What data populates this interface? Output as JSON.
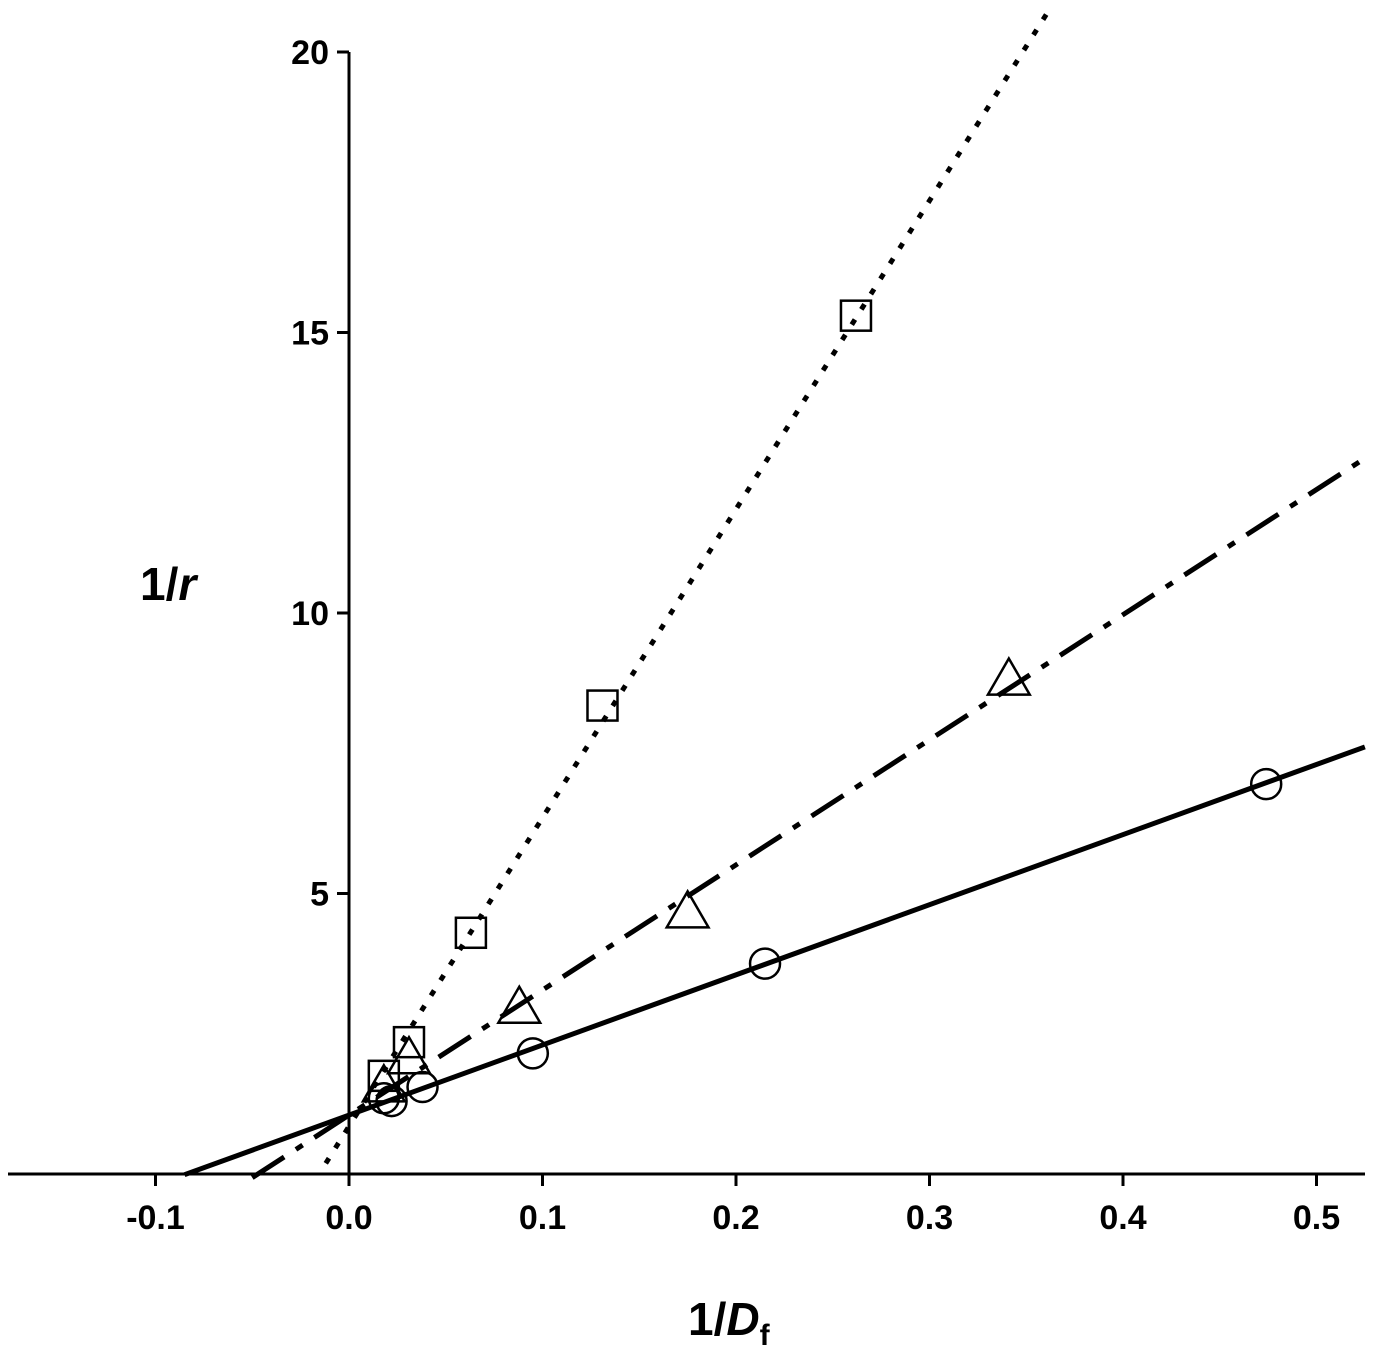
{
  "chart_data": {
    "type": "scatter",
    "title": "",
    "xlabel": {
      "prefix": "1/",
      "italic": "D",
      "sub": "f"
    },
    "ylabel": {
      "prefix": "1/",
      "italic": "r"
    },
    "xlim": [
      -0.177,
      0.525
    ],
    "ylim": [
      0,
      20
    ],
    "x_ticks": [
      -0.1,
      0.0,
      0.1,
      0.2,
      0.3,
      0.4,
      0.5
    ],
    "x_tick_labels": [
      "-0.1",
      "0.0",
      "0.1",
      "0.2",
      "0.3",
      "0.4",
      "0.5"
    ],
    "y_ticks": [
      5,
      10,
      15,
      20
    ],
    "y_tick_labels": [
      "5",
      "10",
      "15",
      "20"
    ],
    "grid": false,
    "legend": "none",
    "series": [
      {
        "marker": "square",
        "line_style": "dotted",
        "fit": {
          "slope": 55.0,
          "intercept": 0.85,
          "x_range": [
            -0.012,
            0.361
          ]
        },
        "x": [
          0.018,
          0.031,
          0.063,
          0.131,
          0.262
        ],
        "y": [
          1.75,
          2.35,
          4.3,
          8.35,
          15.3
        ]
      },
      {
        "marker": "triangle",
        "line_style": "dash-dot",
        "fit": {
          "slope": 22.3,
          "intercept": 1.05,
          "x_range": [
            -0.05,
            0.525
          ]
        },
        "x": [
          0.018,
          0.031,
          0.088,
          0.175,
          0.341
        ],
        "y": [
          1.6,
          2.1,
          3.0,
          4.7,
          8.85
        ]
      },
      {
        "marker": "circle",
        "line_style": "solid",
        "fit": {
          "slope": 12.5,
          "intercept": 1.05,
          "x_range": [
            -0.085,
            0.525
          ]
        },
        "x": [
          0.018,
          0.022,
          0.038,
          0.095,
          0.215,
          0.474
        ],
        "y": [
          1.35,
          1.3,
          1.55,
          2.15,
          3.75,
          6.95
        ]
      }
    ]
  }
}
